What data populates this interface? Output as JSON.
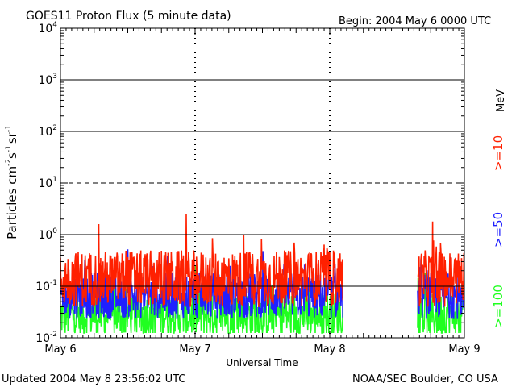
{
  "header": {
    "title": "GOES11 Proton Flux (5 minute data)",
    "begin": "Begin: 2004 May 6 0000 UTC"
  },
  "footer": {
    "updated": "Updated 2004 May  8 23:56:02 UTC",
    "credit": "NOAA/SEC Boulder, CO USA"
  },
  "chart_data": {
    "type": "line",
    "title": "GOES11 Proton Flux (5 minute data)",
    "xlabel": "Universal Time",
    "ylabel_base": "Particles cm",
    "ylabel_unit": "s",
    "ylabel_unit2": "sr",
    "ylabel_sup1": "-2",
    "ylabel_sup2": "-1",
    "ylabel_sup3": "-1",
    "yscale": "log",
    "ylim": [
      0.01,
      10000
    ],
    "x_tick_labels": [
      "May 6",
      "May 7",
      "May 8",
      "May 9"
    ],
    "x_range_days": [
      0,
      3
    ],
    "y_ticks": [
      {
        "value": 0.01,
        "base": "10",
        "exp": "-2"
      },
      {
        "value": 0.1,
        "base": "10",
        "exp": "-1"
      },
      {
        "value": 1,
        "base": "10",
        "exp": "0"
      },
      {
        "value": 10,
        "base": "10",
        "exp": "1"
      },
      {
        "value": 100,
        "base": "10",
        "exp": "2"
      },
      {
        "value": 1000,
        "base": "10",
        "exp": "3"
      },
      {
        "value": 10000,
        "base": "10",
        "exp": "4"
      }
    ],
    "thresholds": [
      {
        "value": 0.1,
        "style": "solid"
      },
      {
        "value": 1,
        "style": "solid"
      },
      {
        "value": 10,
        "style": "dashed"
      },
      {
        "value": 100,
        "style": "solid"
      },
      {
        "value": 1000,
        "style": "solid"
      }
    ],
    "data_gaps_days": [
      [
        2.1,
        2.65
      ]
    ],
    "unit_label": "MeV",
    "series": [
      {
        "name": ">=10",
        "color": "#ff2000",
        "level": 0.14,
        "spread": 0.55
      },
      {
        "name": ">=50",
        "color": "#2020ff",
        "level": 0.065,
        "spread": 0.45
      },
      {
        "name": ">=100",
        "color": "#20ff20",
        "level": 0.028,
        "spread": 0.45
      }
    ]
  }
}
